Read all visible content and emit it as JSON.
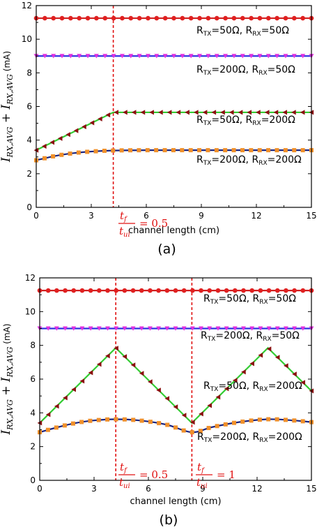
{
  "chart_data": [
    {
      "type": "line",
      "panel_label": "(a)",
      "xlabel": "channel length (cm)",
      "ylabel": "I_RX,AVG + I_RX,AVG (mA)",
      "ylabel_main": "I",
      "ylabel_sub1": "RX,AVG",
      "ylabel_plus": " + I",
      "ylabel_sub2": "RX,AVG",
      "ylabel_unit": " (mA)",
      "xlim": [
        0,
        15
      ],
      "ylim": [
        0,
        12
      ],
      "xticks": [
        "0",
        "3",
        "6",
        "9",
        "12",
        "15"
      ],
      "yticks": [
        "0",
        "2",
        "4",
        "6",
        "8",
        "10",
        "12"
      ],
      "vlines": [
        4.2
      ],
      "vline_labels": [
        {
          "num": "t",
          "num_sub": "f",
          "den": "t",
          "den_sub": "ui",
          "rhs": "= 0.5"
        }
      ],
      "series": [
        {
          "values_x": [
            0,
            15
          ],
          "values_y": [
            11.25,
            11.25
          ],
          "line": "#d02020",
          "marker": "circle",
          "marker_color": "#e02020",
          "annotation": {
            "pre": "R",
            "s1": "TX",
            "mid": "=50Ω, R",
            "s2": "RX",
            "post": "=50Ω"
          }
        },
        {
          "values_x": [
            0,
            15
          ],
          "values_y": [
            9.0,
            9.0
          ],
          "line": "#3030e0",
          "marker": "triangle-down",
          "marker_color": "#e030e0",
          "annotation": {
            "pre": "R",
            "s1": "TX",
            "mid": "=200Ω, R",
            "s2": "RX",
            "post": "=50Ω"
          }
        },
        {
          "values_x": [
            0,
            4.2,
            15
          ],
          "values_y": [
            3.4,
            5.65,
            5.65
          ],
          "line": "#33cc33",
          "marker": "triangle-left",
          "marker_color": "#8b1010",
          "annotation": {
            "pre": "R",
            "s1": "TX",
            "mid": "=50Ω, R",
            "s2": "RX",
            "post": "=200Ω"
          }
        },
        {
          "values_x": [
            0,
            1,
            2,
            3,
            4.2,
            6,
            9,
            12,
            15
          ],
          "values_y": [
            2.8,
            3.05,
            3.22,
            3.32,
            3.38,
            3.4,
            3.4,
            3.4,
            3.4
          ],
          "line": "#1a237e",
          "marker": "square",
          "marker_color": "#f0902a",
          "annotation": {
            "pre": "R",
            "s1": "TX",
            "mid": "=200Ω, R",
            "s2": "RX",
            "post": "=200Ω"
          }
        }
      ]
    },
    {
      "type": "line",
      "panel_label": "(b)",
      "xlabel": "channel length (cm)",
      "ylabel": "I_RX,AVG + I_RX,AVG (mA)",
      "ylabel_main": "I",
      "ylabel_sub1": "RX,AVG",
      "ylabel_plus": " + I",
      "ylabel_sub2": "RX,AVG",
      "ylabel_unit": " (mA)",
      "xlim": [
        0,
        15
      ],
      "ylim": [
        0,
        12
      ],
      "xticks": [
        "0",
        "3",
        "6",
        "9",
        "12",
        "15"
      ],
      "yticks": [
        "0",
        "2",
        "4",
        "6",
        "8",
        "10",
        "12"
      ],
      "vlines": [
        4.2,
        8.4
      ],
      "vline_labels": [
        {
          "num": "t",
          "num_sub": "f",
          "den": "t",
          "den_sub": "ui",
          "rhs": "= 0.5"
        },
        {
          "num": "t",
          "num_sub": "f",
          "den": "t",
          "den_sub": "ui",
          "rhs": "= 1"
        }
      ],
      "series": [
        {
          "values_x": [
            0,
            15
          ],
          "values_y": [
            11.25,
            11.25
          ],
          "line": "#d02020",
          "marker": "circle",
          "marker_color": "#e02020",
          "annotation": {
            "pre": "R",
            "s1": "TX",
            "mid": "=50Ω, R",
            "s2": "RX",
            "post": "=50Ω"
          }
        },
        {
          "values_x": [
            0,
            15
          ],
          "values_y": [
            9.0,
            9.0
          ],
          "line": "#3030e0",
          "marker": "triangle-down",
          "marker_color": "#e030e0",
          "annotation": {
            "pre": "R",
            "s1": "TX",
            "mid": "=200Ω, R",
            "s2": "RX",
            "post": "=50Ω"
          }
        },
        {
          "values_x": [
            0,
            4.2,
            8.4,
            12.6,
            15
          ],
          "values_y": [
            3.4,
            7.85,
            3.4,
            7.85,
            5.3
          ],
          "line": "#33cc33",
          "marker": "triangle-left",
          "marker_color": "#8b1010",
          "annotation": {
            "pre": "R",
            "s1": "TX",
            "mid": "=50Ω, R",
            "s2": "RX",
            "post": "=200Ω"
          }
        },
        {
          "values_x": [
            0,
            1,
            2,
            3,
            4.2,
            5.5,
            7,
            8.4,
            9.5,
            11,
            12.6,
            14,
            15
          ],
          "values_y": [
            2.85,
            3.15,
            3.4,
            3.55,
            3.62,
            3.55,
            3.3,
            2.85,
            3.15,
            3.45,
            3.62,
            3.55,
            3.45
          ],
          "line": "#1a237e",
          "marker": "square",
          "marker_color": "#f0902a",
          "annotation": {
            "pre": "R",
            "s1": "TX",
            "mid": "=200Ω, R",
            "s2": "RX",
            "post": "=200Ω"
          }
        }
      ]
    }
  ],
  "colors": {
    "vline": "#e01010",
    "axis": "#000000"
  }
}
